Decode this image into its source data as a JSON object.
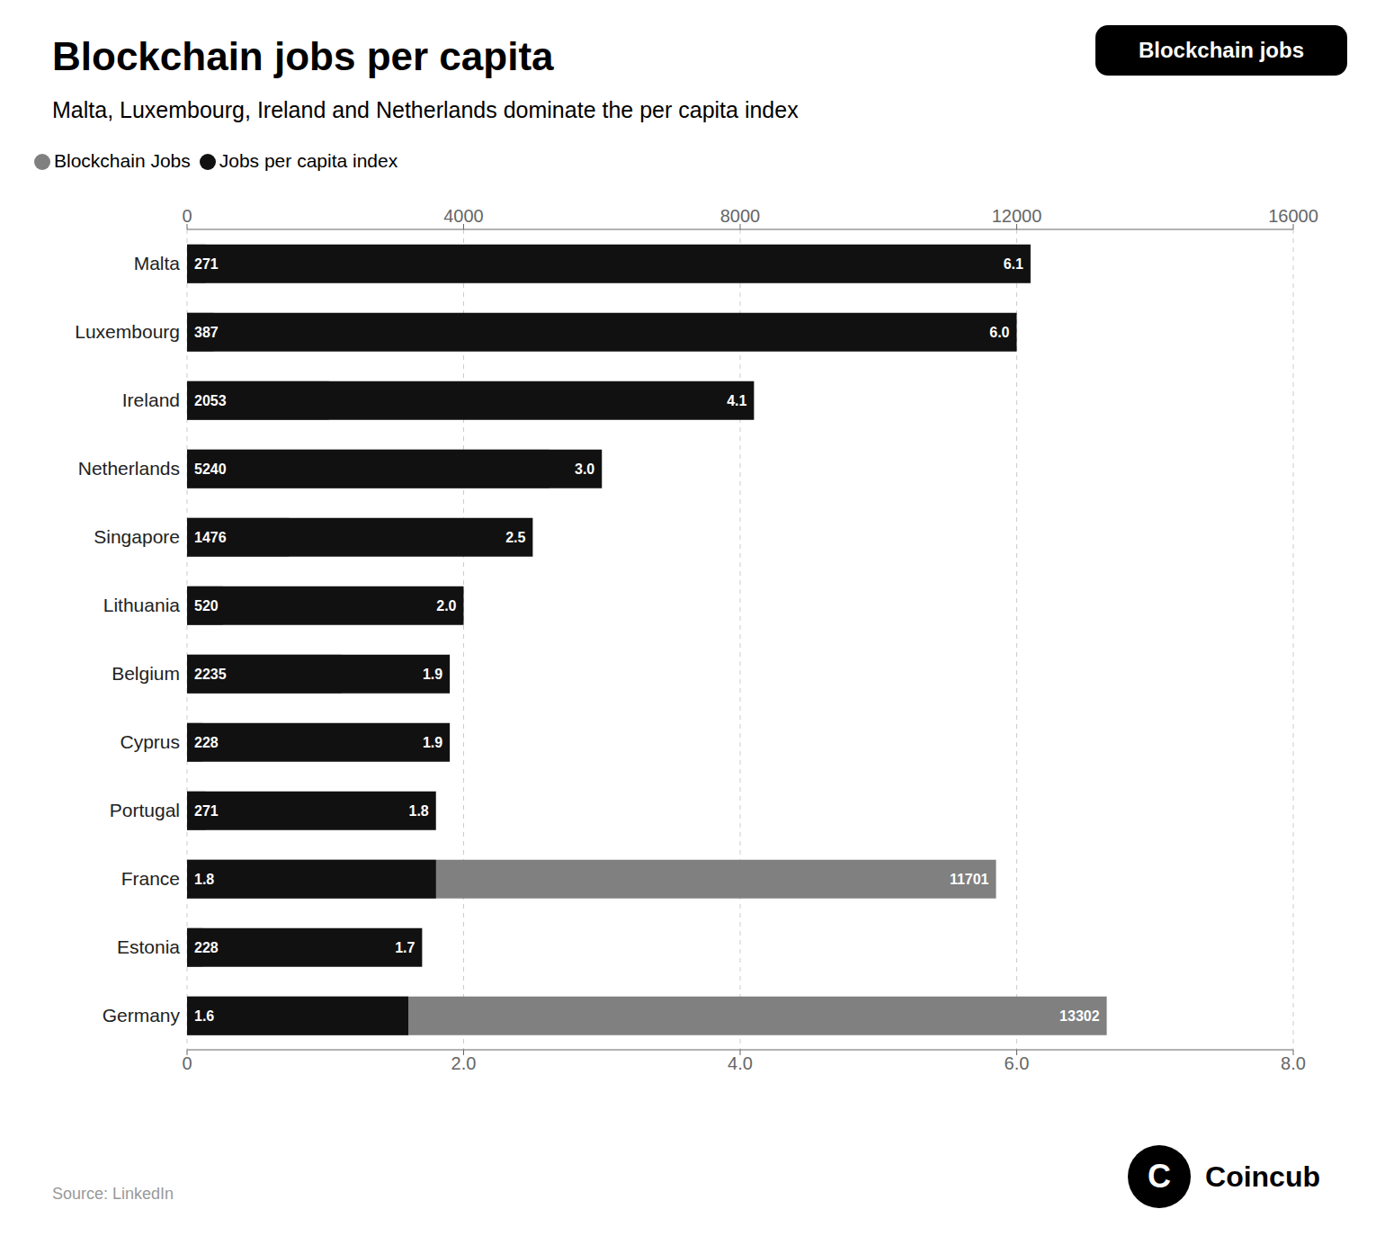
{
  "chart_data": {
    "type": "bar",
    "orientation": "horizontal",
    "title": "Blockchain jobs per capita",
    "subtitle": "Malta, Luxembourg, Ireland and Netherlands dominate the per capita index",
    "annotations": [
      "Source: LinkedIn",
      "Blockchain jobs",
      "C",
      "Coincub"
    ],
    "categories": [
      "Malta",
      "Luxembourg",
      "Ireland",
      "Netherlands",
      "Singapore",
      "Lithuania",
      "Belgium",
      "Cyprus",
      "Portugal",
      "France",
      "Estonia",
      "Germany"
    ],
    "series": [
      {
        "name": "Blockchain Jobs",
        "color": "#808080",
        "values": [
          271,
          387,
          2053,
          5240,
          1476,
          520,
          2235,
          228,
          271,
          11701,
          228,
          13302
        ]
      },
      {
        "name": "Jobs per capita index",
        "color": "#111111",
        "axis": "y2",
        "values": [
          6.1,
          6.0,
          4.1,
          3.0,
          2.5,
          2.0,
          1.9,
          1.9,
          1.8,
          1.8,
          1.7,
          1.6
        ],
        "value_labels": [
          "6.1",
          "6.0",
          "4.1",
          "3.0",
          "2.5",
          "2.0",
          "1.9",
          "1.9",
          "1.8",
          "1.8",
          "1.7",
          "1.6"
        ]
      }
    ],
    "ylim": [
      0,
      16000
    ],
    "yticks": [
      0,
      4000,
      8000,
      12000,
      16000
    ],
    "y2lim": [
      0,
      8
    ],
    "y2ticks": [
      0,
      {
        "value": 2,
        "label": "2.0"
      },
      {
        "value": 4,
        "label": "4.0"
      },
      {
        "value": 6,
        "label": "6.0"
      },
      {
        "value": 8,
        "label": "8.0"
      }
    ],
    "grid": true,
    "legend": "upper left",
    "data_labels": true
  }
}
